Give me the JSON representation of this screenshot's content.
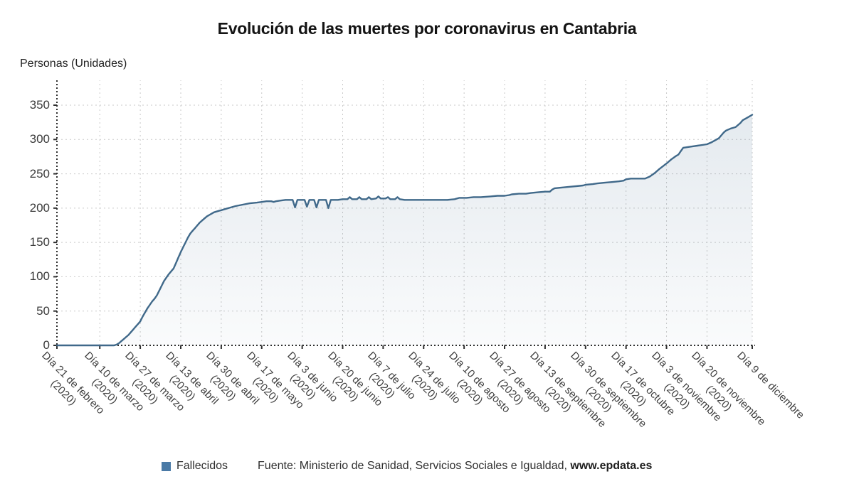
{
  "title": "Evolución de las muertes por coronavirus en Cantabria",
  "y_axis_label": "Personas (Unidades)",
  "legend": {
    "series_label": "Fallecidos",
    "swatch_color": "#4a7aa6"
  },
  "source": {
    "prefix": "Fuente: Ministerio de Sanidad, Servicios Sociales e Igualdad, ",
    "site": "www.epdata.es"
  },
  "colors": {
    "line": "#40698a",
    "area_top": "rgba(90,125,155,0.16)",
    "area_bottom": "rgba(90,125,155,0.03)",
    "grid": "#c9c9c9",
    "axis": "#2e2e2e",
    "tick_text": "#3f3f3f"
  },
  "chart_data": {
    "type": "area",
    "title": "Evolución de las muertes por coronavirus en Cantabria",
    "xlabel": "",
    "ylabel": "Personas (Unidades)",
    "legend_entries": [
      "Fallecidos"
    ],
    "legend_position": "bottom",
    "grid": true,
    "ylim": [
      0,
      350
    ],
    "y_ticks": [
      0,
      50,
      100,
      150,
      200,
      250,
      300,
      350
    ],
    "total_days": 292,
    "x_ticks": [
      {
        "day": 0,
        "line1": "Día 21 de febrero",
        "line2": "(2020)"
      },
      {
        "day": 18,
        "line1": "Día 10 de marzo",
        "line2": "(2020)"
      },
      {
        "day": 35,
        "line1": "Día 27 de marzo",
        "line2": "(2020)"
      },
      {
        "day": 52,
        "line1": "Día 13 de abril",
        "line2": "(2020)"
      },
      {
        "day": 69,
        "line1": "Día 30 de abril",
        "line2": "(2020)"
      },
      {
        "day": 86,
        "line1": "Día 17 de mayo",
        "line2": "(2020)"
      },
      {
        "day": 103,
        "line1": "Día 3 de junio",
        "line2": "(2020)"
      },
      {
        "day": 120,
        "line1": "Día 20 de junio",
        "line2": "(2020)"
      },
      {
        "day": 137,
        "line1": "Día 7 de julio",
        "line2": "(2020)"
      },
      {
        "day": 154,
        "line1": "Día 24 de julio",
        "line2": "(2020)"
      },
      {
        "day": 171,
        "line1": "Día 10 de agosto",
        "line2": "(2020)"
      },
      {
        "day": 188,
        "line1": "Día 27 de agosto",
        "line2": "(2020)"
      },
      {
        "day": 205,
        "line1": "Día 13 de septiembre",
        "line2": "(2020)"
      },
      {
        "day": 222,
        "line1": "Día 30 de septiembre",
        "line2": "(2020)"
      },
      {
        "day": 239,
        "line1": "Día 17 de octubre",
        "line2": "(2020)"
      },
      {
        "day": 256,
        "line1": "Día 3 de noviembre",
        "line2": "(2020)"
      },
      {
        "day": 273,
        "line1": "Día 20 de noviembre",
        "line2": "(2020)"
      },
      {
        "day": 292,
        "line1": "Día 9 de diciembre",
        "line2": ""
      }
    ],
    "series": [
      {
        "name": "Fallecidos",
        "points": [
          [
            0,
            0
          ],
          [
            10,
            0
          ],
          [
            20,
            0
          ],
          [
            24,
            0
          ],
          [
            25,
            1
          ],
          [
            26,
            3
          ],
          [
            27,
            6
          ],
          [
            28,
            9
          ],
          [
            29,
            12
          ],
          [
            30,
            15
          ],
          [
            31,
            19
          ],
          [
            32,
            23
          ],
          [
            33,
            27
          ],
          [
            34,
            31
          ],
          [
            35,
            35
          ],
          [
            36,
            42
          ],
          [
            37,
            48
          ],
          [
            38,
            54
          ],
          [
            39,
            59
          ],
          [
            40,
            64
          ],
          [
            41,
            68
          ],
          [
            42,
            73
          ],
          [
            43,
            80
          ],
          [
            44,
            87
          ],
          [
            45,
            94
          ],
          [
            46,
            99
          ],
          [
            47,
            104
          ],
          [
            48,
            108
          ],
          [
            49,
            112
          ],
          [
            50,
            120
          ],
          [
            51,
            128
          ],
          [
            52,
            136
          ],
          [
            53,
            143
          ],
          [
            54,
            150
          ],
          [
            55,
            157
          ],
          [
            56,
            163
          ],
          [
            57,
            167
          ],
          [
            58,
            171
          ],
          [
            59,
            175
          ],
          [
            60,
            179
          ],
          [
            61,
            182
          ],
          [
            62,
            185
          ],
          [
            63,
            188
          ],
          [
            64,
            190
          ],
          [
            65,
            192
          ],
          [
            66,
            194
          ],
          [
            67,
            195
          ],
          [
            68,
            196
          ],
          [
            69,
            197
          ],
          [
            71,
            199
          ],
          [
            73,
            201
          ],
          [
            75,
            203
          ],
          [
            78,
            205
          ],
          [
            81,
            207
          ],
          [
            84,
            208
          ],
          [
            86,
            209
          ],
          [
            88,
            210
          ],
          [
            90,
            210
          ],
          [
            91,
            209
          ],
          [
            92,
            210
          ],
          [
            94,
            211
          ],
          [
            96,
            212
          ],
          [
            98,
            212
          ],
          [
            99,
            212
          ],
          [
            100,
            201
          ],
          [
            101,
            212
          ],
          [
            104,
            212
          ],
          [
            105,
            202
          ],
          [
            106,
            212
          ],
          [
            108,
            212
          ],
          [
            109,
            201
          ],
          [
            110,
            212
          ],
          [
            113,
            212
          ],
          [
            114,
            200
          ],
          [
            115,
            212
          ],
          [
            118,
            212
          ],
          [
            120,
            213
          ],
          [
            122,
            213
          ],
          [
            123,
            216
          ],
          [
            124,
            213
          ],
          [
            126,
            213
          ],
          [
            127,
            216
          ],
          [
            128,
            213
          ],
          [
            130,
            213
          ],
          [
            131,
            216
          ],
          [
            132,
            213
          ],
          [
            134,
            214
          ],
          [
            135,
            217
          ],
          [
            136,
            214
          ],
          [
            138,
            214
          ],
          [
            139,
            216
          ],
          [
            140,
            213
          ],
          [
            142,
            213
          ],
          [
            143,
            216
          ],
          [
            144,
            213
          ],
          [
            146,
            212
          ],
          [
            152,
            212
          ],
          [
            158,
            212
          ],
          [
            164,
            212
          ],
          [
            167,
            213
          ],
          [
            169,
            215
          ],
          [
            172,
            215
          ],
          [
            175,
            216
          ],
          [
            178,
            216
          ],
          [
            182,
            217
          ],
          [
            185,
            218
          ],
          [
            188,
            218
          ],
          [
            190,
            219
          ],
          [
            191,
            220
          ],
          [
            194,
            221
          ],
          [
            197,
            221
          ],
          [
            199,
            222
          ],
          [
            202,
            223
          ],
          [
            205,
            224
          ],
          [
            207,
            224
          ],
          [
            208,
            227
          ],
          [
            209,
            229
          ],
          [
            212,
            230
          ],
          [
            215,
            231
          ],
          [
            218,
            232
          ],
          [
            221,
            233
          ],
          [
            222,
            234
          ],
          [
            225,
            235
          ],
          [
            227,
            236
          ],
          [
            230,
            237
          ],
          [
            233,
            238
          ],
          [
            236,
            239
          ],
          [
            238,
            240
          ],
          [
            239,
            242
          ],
          [
            241,
            243
          ],
          [
            244,
            243
          ],
          [
            247,
            243
          ],
          [
            249,
            246
          ],
          [
            251,
            251
          ],
          [
            253,
            257
          ],
          [
            256,
            265
          ],
          [
            258,
            271
          ],
          [
            260,
            276
          ],
          [
            261,
            278
          ],
          [
            262,
            283
          ],
          [
            263,
            288
          ],
          [
            265,
            289
          ],
          [
            267,
            290
          ],
          [
            269,
            291
          ],
          [
            271,
            292
          ],
          [
            273,
            293
          ],
          [
            275,
            296
          ],
          [
            276,
            298
          ],
          [
            278,
            302
          ],
          [
            279,
            306
          ],
          [
            280,
            310
          ],
          [
            281,
            313
          ],
          [
            283,
            316
          ],
          [
            284,
            317
          ],
          [
            285,
            318
          ],
          [
            287,
            324
          ],
          [
            288,
            328
          ],
          [
            290,
            332
          ],
          [
            292,
            336
          ]
        ]
      }
    ]
  }
}
